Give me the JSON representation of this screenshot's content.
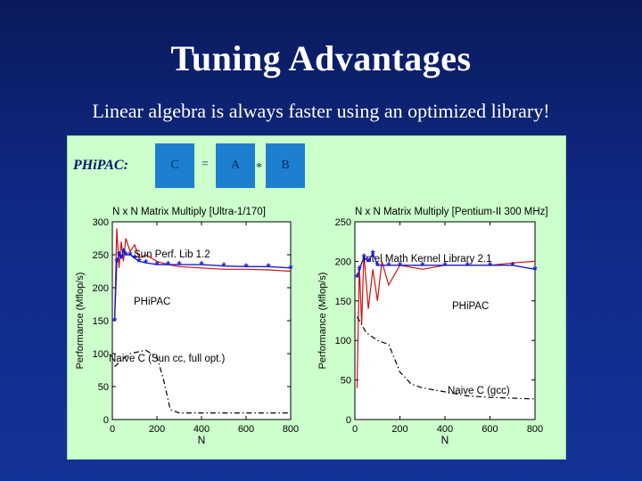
{
  "slide": {
    "title": "Tuning Advantages",
    "subtitle": "Linear algebra is always faster using an optimized library!"
  },
  "equation": {
    "label": "PHiPAC:",
    "c": "C",
    "equals": "=",
    "a": "A",
    "times": "*",
    "b": "B"
  },
  "colors": {
    "background": "#0f2a88",
    "panel": "#ccffcc",
    "matrix_block": "#1c7fd0",
    "lib_series": "#cc1111",
    "phipac_series": "#1a1acc",
    "naive_series": "#000000"
  },
  "chart_data": [
    {
      "type": "line",
      "title": "N x N Matrix Multiply [Ultra-1/170]",
      "xlabel": "N",
      "ylabel": "Performance (Mflop/s)",
      "xlim": [
        0,
        800
      ],
      "ylim": [
        0,
        300
      ],
      "xticks": [
        "0",
        "200",
        "400",
        "600",
        "800"
      ],
      "yticks": [
        "0",
        "50",
        "100",
        "150",
        "200",
        "250",
        "300"
      ],
      "grid": false,
      "series": [
        {
          "name": "Sun Perf. Lib 1.2",
          "style": "solid-red",
          "x": [
            10,
            20,
            30,
            40,
            50,
            60,
            80,
            100,
            120,
            150,
            200,
            250,
            300,
            400,
            500,
            600,
            700,
            800
          ],
          "y": [
            150,
            290,
            230,
            270,
            240,
            275,
            255,
            265,
            245,
            250,
            240,
            235,
            232,
            230,
            228,
            228,
            227,
            225
          ]
        },
        {
          "name": "PHiPAC",
          "style": "blue-star",
          "x": [
            10,
            20,
            30,
            40,
            50,
            60,
            80,
            100,
            120,
            150,
            200,
            250,
            300,
            400,
            500,
            600,
            700,
            800
          ],
          "y": [
            150,
            240,
            250,
            245,
            255,
            250,
            250,
            245,
            240,
            238,
            235,
            235,
            235,
            235,
            233,
            232,
            232,
            230
          ]
        },
        {
          "name": "Naive C (Sun cc, full opt.)",
          "style": "dash-dot-black",
          "x": [
            10,
            40,
            80,
            120,
            150,
            200,
            230,
            260,
            300,
            400,
            500,
            600,
            700,
            800
          ],
          "y": [
            80,
            90,
            100,
            103,
            105,
            95,
            60,
            15,
            10,
            10,
            10,
            10,
            10,
            10
          ]
        }
      ]
    },
    {
      "type": "line",
      "title": "N x N Matrix Multiply [Pentium-II 300 MHz]",
      "xlabel": "N",
      "ylabel": "Performance (Mflop/s)",
      "xlim": [
        0,
        800
      ],
      "ylim": [
        0,
        250
      ],
      "xticks": [
        "0",
        "200",
        "400",
        "600",
        "800"
      ],
      "yticks": [
        "0",
        "50",
        "100",
        "150",
        "200",
        "250"
      ],
      "grid": false,
      "series": [
        {
          "name": "Intel Math Kernel Library 2.1",
          "style": "solid-red",
          "x": [
            10,
            20,
            30,
            40,
            60,
            80,
            100,
            120,
            150,
            200,
            300,
            400,
            500,
            600,
            700,
            800
          ],
          "y": [
            40,
            195,
            120,
            210,
            140,
            190,
            150,
            200,
            170,
            195,
            190,
            195,
            195,
            195,
            198,
            200
          ]
        },
        {
          "name": "PHiPAC",
          "style": "blue-star",
          "x": [
            10,
            20,
            40,
            60,
            80,
            100,
            150,
            200,
            300,
            400,
            500,
            600,
            700,
            800
          ],
          "y": [
            180,
            190,
            205,
            200,
            210,
            195,
            195,
            195,
            195,
            195,
            195,
            195,
            195,
            190
          ]
        },
        {
          "name": "Naive C (gcc)",
          "style": "dash-dot-black",
          "x": [
            10,
            50,
            100,
            150,
            200,
            250,
            300,
            400,
            500,
            600,
            700,
            800
          ],
          "y": [
            130,
            110,
            100,
            95,
            60,
            45,
            40,
            35,
            30,
            28,
            27,
            26
          ]
        }
      ]
    }
  ]
}
